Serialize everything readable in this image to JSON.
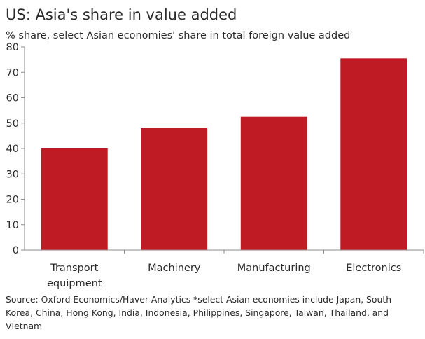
{
  "title": "US: Asia's share in value added",
  "subtitle": "% share, select Asian economies' share in total foreign value added",
  "source": "Source: Oxford Economics/Haver Analytics *select Asian economies include Japan, South Korea, China, Hong Kong, India, Indonesia, Philippines, Singapore, Taiwan, Thailand, and VIetnam",
  "chart_data": {
    "type": "bar",
    "categories": [
      [
        "Transport",
        "equipment"
      ],
      [
        "Machinery"
      ],
      [
        "Manufacturing"
      ],
      [
        "Electronics"
      ]
    ],
    "values": [
      40,
      48,
      52.5,
      75.5
    ],
    "title": "US: Asia's share in value added",
    "subtitle": "% share, select Asian economies' share in total foreign value added",
    "xlabel": "",
    "ylabel": "",
    "ylim": [
      0,
      80
    ],
    "yticks": [
      0,
      10,
      20,
      30,
      40,
      50,
      60,
      70,
      80
    ],
    "grid": false,
    "legend": "none",
    "bar_color": "#bf1b24",
    "axis_color": "#8c8c8c"
  }
}
